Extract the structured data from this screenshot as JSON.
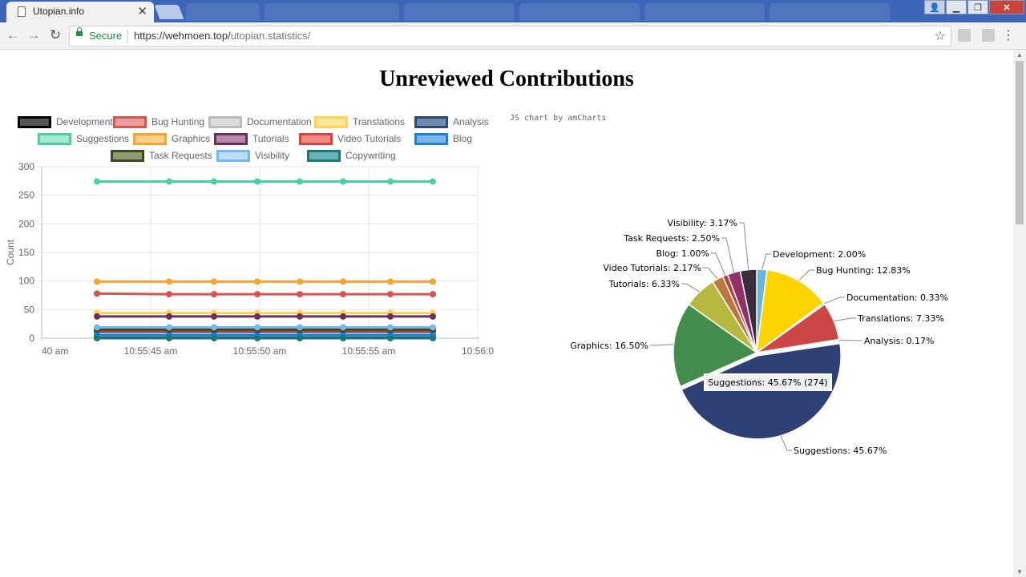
{
  "browser": {
    "tab_title": "Utopian.info",
    "secure_label": "Secure",
    "url_host": "https://wehmoen.top/",
    "url_path": "utopian.statistics/"
  },
  "page": {
    "title": "Unreviewed Contributions"
  },
  "line_chart": {
    "chart_data": {
      "type": "line",
      "ylabel": "Count",
      "ylim": [
        0,
        300
      ],
      "y_ticks": [
        "0",
        "50",
        "100",
        "150",
        "200",
        "250",
        "300"
      ],
      "x_tick_labels": [
        "40 am",
        "10:55:45 am",
        "10:55:50 am",
        "10:55:55 am",
        "10:56:0"
      ],
      "grid": true,
      "legend_placement": "top",
      "series": [
        {
          "name": "Development",
          "color": "#000000",
          "fill": "#555555",
          "values": [
            12,
            12,
            12,
            12,
            12,
            12,
            12,
            12
          ]
        },
        {
          "name": "Bug Hunting",
          "color": "#d9534f",
          "fill": "#eb9d9b",
          "values": [
            78,
            77,
            77,
            77,
            77,
            77,
            77,
            77
          ]
        },
        {
          "name": "Documentation",
          "color": "#bbbbbb",
          "fill": "#dddddd",
          "values": [
            2,
            2,
            2,
            2,
            2,
            2,
            2,
            2
          ]
        },
        {
          "name": "Translations",
          "color": "#ffd34d",
          "fill": "#ffe79c",
          "values": [
            44,
            44,
            44,
            44,
            44,
            44,
            44,
            44
          ]
        },
        {
          "name": "Analysis",
          "color": "#2e4a7a",
          "fill": "#7388ad",
          "values": [
            1,
            1,
            1,
            1,
            1,
            1,
            1,
            1
          ]
        },
        {
          "name": "Suggestions",
          "color": "#48d1a0",
          "fill": "#a6e8cf",
          "values": [
            274,
            274,
            274,
            274,
            274,
            274,
            274,
            274
          ]
        },
        {
          "name": "Graphics",
          "color": "#f7a52b",
          "fill": "#fbcf8c",
          "values": [
            99,
            99,
            99,
            99,
            99,
            99,
            99,
            99
          ]
        },
        {
          "name": "Tutorials",
          "color": "#6b2f5a",
          "fill": "#b888a9",
          "values": [
            38,
            38,
            38,
            38,
            38,
            38,
            38,
            38
          ]
        },
        {
          "name": "Video Tutorials",
          "color": "#e0413a",
          "fill": "#f08a85",
          "values": [
            13,
            13,
            13,
            13,
            13,
            13,
            13,
            13
          ]
        },
        {
          "name": "Blog",
          "color": "#1e7fd6",
          "fill": "#7fb6ea",
          "values": [
            6,
            6,
            6,
            6,
            6,
            6,
            6,
            6
          ]
        },
        {
          "name": "Task Requests",
          "color": "#3a4a1e",
          "fill": "#8f9a72",
          "values": [
            15,
            15,
            15,
            15,
            15,
            15,
            15,
            15
          ]
        },
        {
          "name": "Visibility",
          "color": "#74b8ef",
          "fill": "#bedcf7",
          "values": [
            19,
            19,
            19,
            19,
            19,
            19,
            19,
            19
          ]
        },
        {
          "name": "Copywriting",
          "color": "#167a78",
          "fill": "#6bb3b1",
          "values": [
            0,
            0,
            0,
            0,
            0,
            0,
            0,
            0
          ]
        }
      ]
    }
  },
  "pie_chart": {
    "credit": "JS chart by amCharts",
    "tooltip": "Suggestions: 45.67% (274)",
    "chart_data": {
      "type": "pie",
      "slices": [
        {
          "label": "Development",
          "value": 2.0,
          "text": "Development: 2.00%",
          "color": "#67b7dc"
        },
        {
          "label": "Bug Hunting",
          "value": 12.83,
          "text": "Bug Hunting: 12.83%",
          "color": "#fdd400"
        },
        {
          "label": "Documentation",
          "value": 0.33,
          "text": "Documentation: 0.33%",
          "color": "#84b761"
        },
        {
          "label": "Translations",
          "value": 7.33,
          "text": "Translations: 7.33%",
          "color": "#cc4748"
        },
        {
          "label": "Analysis",
          "value": 0.17,
          "text": "Analysis: 0.17%",
          "color": "#cd82ad"
        },
        {
          "label": "Suggestions",
          "value": 45.67,
          "text": "Suggestions: 45.67%",
          "color": "#2f4074"
        },
        {
          "label": "Graphics",
          "value": 16.5,
          "text": "Graphics: 16.50%",
          "color": "#448e4d"
        },
        {
          "label": "Tutorials",
          "value": 6.33,
          "text": "Tutorials: 6.33%",
          "color": "#b7b83f"
        },
        {
          "label": "Video Tutorials",
          "value": 2.17,
          "text": "Video Tutorials: 2.17%",
          "color": "#b9783f"
        },
        {
          "label": "Blog",
          "value": 1.0,
          "text": "Blog: 1.00%",
          "color": "#b93e3d"
        },
        {
          "label": "Task Requests",
          "value": 2.5,
          "text": "Task Requests: 2.50%",
          "color": "#913167"
        },
        {
          "label": "Visibility",
          "value": 3.17,
          "text": "Visibility: 3.17%",
          "color": "#3d2c3f"
        }
      ]
    }
  }
}
